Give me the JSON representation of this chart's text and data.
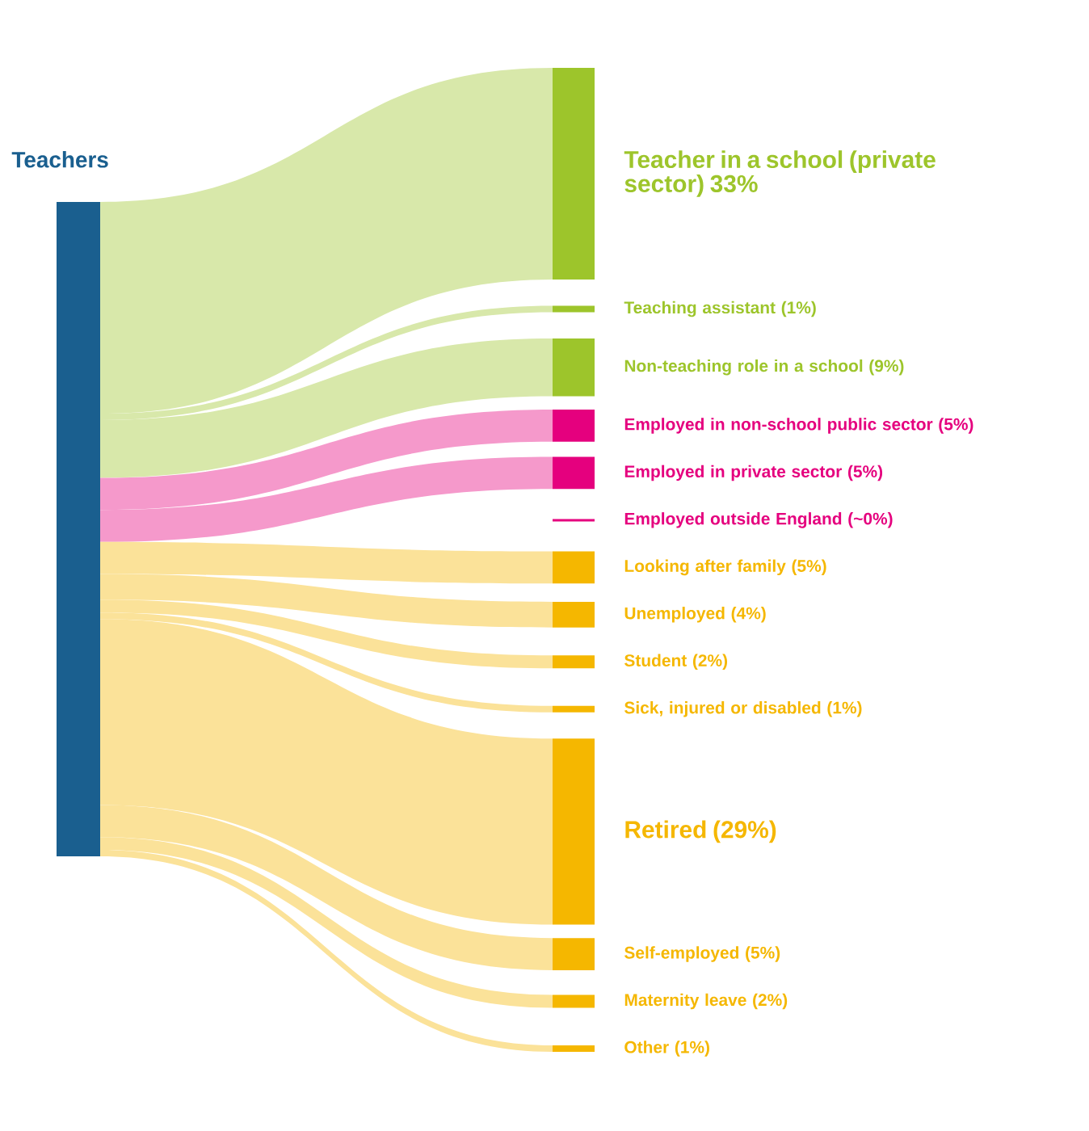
{
  "chart_data": {
    "type": "other",
    "title": "Teachers",
    "categories": [
      "Teacher in a school (private sector)",
      "Teaching assistant",
      "Non-teaching role in a school",
      "Employed in non-school public sector",
      "Employed in private sector",
      "Employed outside England",
      "Looking after family",
      "Unemployed",
      "Student",
      "Sick, injured or disabled",
      "Retired",
      "Self-employed",
      "Maternity leave",
      "Other"
    ],
    "values": [
      33,
      1,
      9,
      5,
      5,
      0,
      5,
      4,
      2,
      1,
      29,
      5,
      2,
      1
    ],
    "value_labels": [
      "33%",
      "(1%)",
      "(9%)",
      "(5%)",
      "(5%)",
      "(~0%)",
      "(5%)",
      "(4%)",
      "(2%)",
      "(1%)",
      "(29%)",
      "(5%)",
      "(2%)",
      "(1%)"
    ],
    "colors": [
      "#9dc52b",
      "#9dc52b",
      "#9dc52b",
      "#e5007e",
      "#e5007e",
      "#e5007e",
      "#f5b700",
      "#f5b700",
      "#f5b700",
      "#f5b700",
      "#f5b700",
      "#f5b700",
      "#f5b700",
      "#f5b700"
    ]
  }
}
